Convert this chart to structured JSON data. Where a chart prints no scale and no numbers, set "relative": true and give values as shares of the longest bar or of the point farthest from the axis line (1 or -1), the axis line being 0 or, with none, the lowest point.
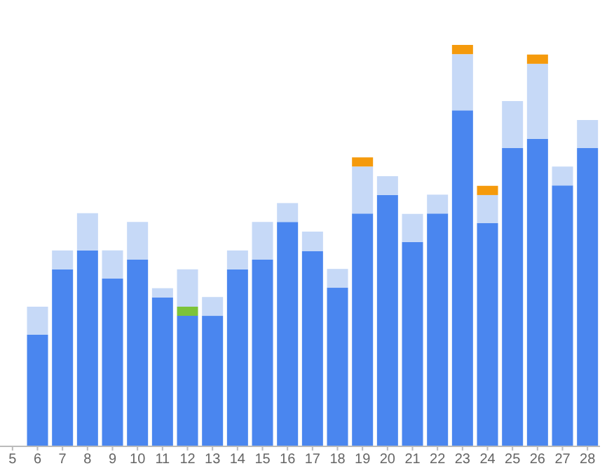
{
  "chart_data": {
    "type": "bar",
    "stacked": true,
    "relative": true,
    "categories": [
      "5",
      "6",
      "7",
      "8",
      "9",
      "10",
      "11",
      "12",
      "13",
      "14",
      "15",
      "16",
      "17",
      "18",
      "19",
      "20",
      "21",
      "22",
      "23",
      "24",
      "25",
      "26",
      "27",
      "28"
    ],
    "series": [
      {
        "color": "#4a86ef",
        "values": [
          null,
          0.278,
          0.441,
          0.488,
          0.418,
          0.465,
          0.371,
          0.325,
          0.325,
          0.441,
          0.465,
          0.559,
          0.486,
          0.395,
          0.58,
          0.626,
          0.509,
          0.58,
          0.837,
          0.556,
          0.743,
          0.766,
          0.65,
          0.743
        ]
      },
      {
        "color": "#7cc33a",
        "values": [
          null,
          null,
          null,
          null,
          null,
          null,
          null,
          0.023,
          null,
          null,
          null,
          null,
          null,
          null,
          null,
          null,
          null,
          null,
          null,
          null,
          null,
          null,
          null,
          null
        ]
      },
      {
        "color": "#c6d9f7",
        "values": [
          null,
          0.07,
          0.047,
          0.093,
          0.07,
          0.094,
          0.023,
          0.093,
          0.047,
          0.047,
          0.094,
          0.047,
          0.049,
          0.047,
          0.117,
          0.047,
          0.07,
          0.047,
          0.14,
          0.07,
          0.117,
          0.187,
          0.047,
          0.07
        ]
      },
      {
        "color": "#f59a0c",
        "values": [
          null,
          null,
          null,
          null,
          null,
          null,
          null,
          null,
          null,
          null,
          null,
          null,
          null,
          null,
          0.023,
          null,
          null,
          null,
          0.023,
          0.023,
          null,
          0.023,
          null,
          null
        ]
      }
    ]
  }
}
